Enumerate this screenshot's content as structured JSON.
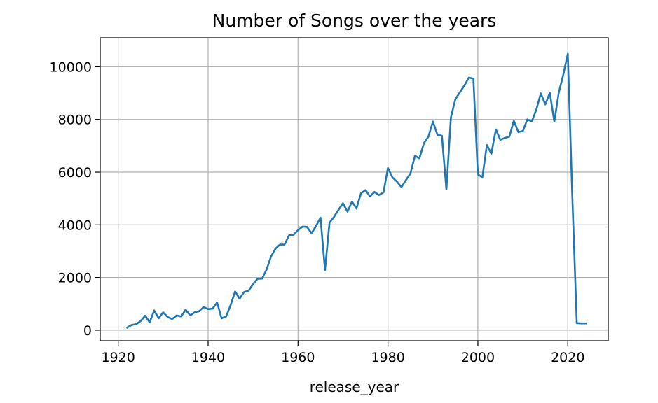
{
  "chart_data": {
    "type": "line",
    "title": "Number of Songs over the years",
    "xlabel": "release_year",
    "ylabel": "",
    "grid": true,
    "xlim": [
      1916,
      2029
    ],
    "ylim": [
      -400,
      11100
    ],
    "xticks": [
      1920,
      1940,
      1960,
      1980,
      2000,
      2020
    ],
    "yticks": [
      0,
      2000,
      4000,
      6000,
      8000,
      10000
    ],
    "series": [
      {
        "name": "",
        "color": "#1f77b4",
        "x": [
          1922,
          1923,
          1924,
          1925,
          1926,
          1927,
          1928,
          1929,
          1930,
          1931,
          1932,
          1933,
          1934,
          1935,
          1936,
          1937,
          1938,
          1939,
          1940,
          1941,
          1942,
          1943,
          1944,
          1945,
          1946,
          1947,
          1948,
          1949,
          1950,
          1951,
          1952,
          1953,
          1954,
          1955,
          1956,
          1957,
          1958,
          1959,
          1960,
          1961,
          1962,
          1963,
          1964,
          1965,
          1966,
          1967,
          1968,
          1969,
          1970,
          1971,
          1972,
          1973,
          1974,
          1975,
          1976,
          1977,
          1978,
          1979,
          1980,
          1981,
          1982,
          1983,
          1984,
          1985,
          1986,
          1987,
          1988,
          1989,
          1990,
          1991,
          1992,
          1993,
          1994,
          1995,
          1996,
          1997,
          1998,
          1999,
          2000,
          2001,
          2002,
          2003,
          2004,
          2005,
          2006,
          2007,
          2008,
          2009,
          2010,
          2011,
          2012,
          2013,
          2014,
          2015,
          2016,
          2017,
          2018,
          2019,
          2020,
          2021,
          2022,
          2023,
          2024
        ],
        "y": [
          100,
          200,
          230,
          350,
          550,
          300,
          750,
          450,
          680,
          500,
          420,
          560,
          520,
          780,
          560,
          680,
          720,
          880,
          800,
          820,
          1050,
          450,
          520,
          950,
          1470,
          1200,
          1450,
          1500,
          1750,
          1950,
          1960,
          2300,
          2800,
          3100,
          3250,
          3250,
          3600,
          3620,
          3800,
          3930,
          3920,
          3680,
          3950,
          4270,
          2280,
          4080,
          4300,
          4570,
          4820,
          4500,
          4880,
          4620,
          5200,
          5320,
          5080,
          5250,
          5130,
          5230,
          6160,
          5800,
          5640,
          5430,
          5700,
          5950,
          6620,
          6530,
          7100,
          7350,
          7920,
          7420,
          7380,
          5340,
          8080,
          8770,
          9030,
          9290,
          9590,
          9550,
          5920,
          5800,
          7030,
          6700,
          7620,
          7230,
          7300,
          7350,
          7950,
          7520,
          7560,
          8000,
          7930,
          8370,
          8990,
          8570,
          9010,
          7920,
          9020,
          9700,
          10490,
          5100,
          270,
          260,
          260
        ]
      }
    ]
  }
}
